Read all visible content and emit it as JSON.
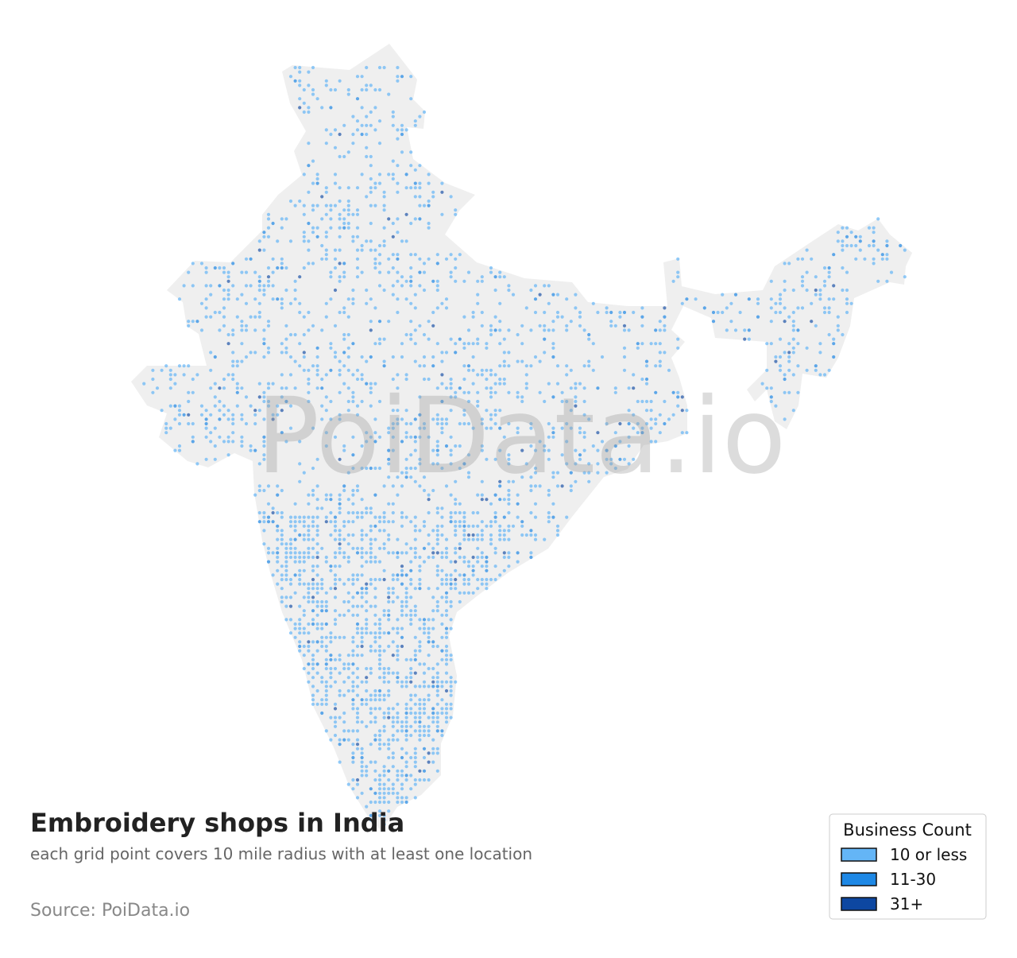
{
  "title": "Embroidery shops in India",
  "subtitle": "each grid point covers 10 mile radius with at least one location",
  "source": "Source: PoiData.io",
  "watermark": "PoiData.io",
  "legend": {
    "title": "Business Count",
    "items": [
      {
        "label": "10 or less",
        "color": "#64b5f6"
      },
      {
        "label": "11-30",
        "color": "#1e88e5"
      },
      {
        "label": "31+",
        "color": "#0d47a1"
      }
    ]
  }
}
